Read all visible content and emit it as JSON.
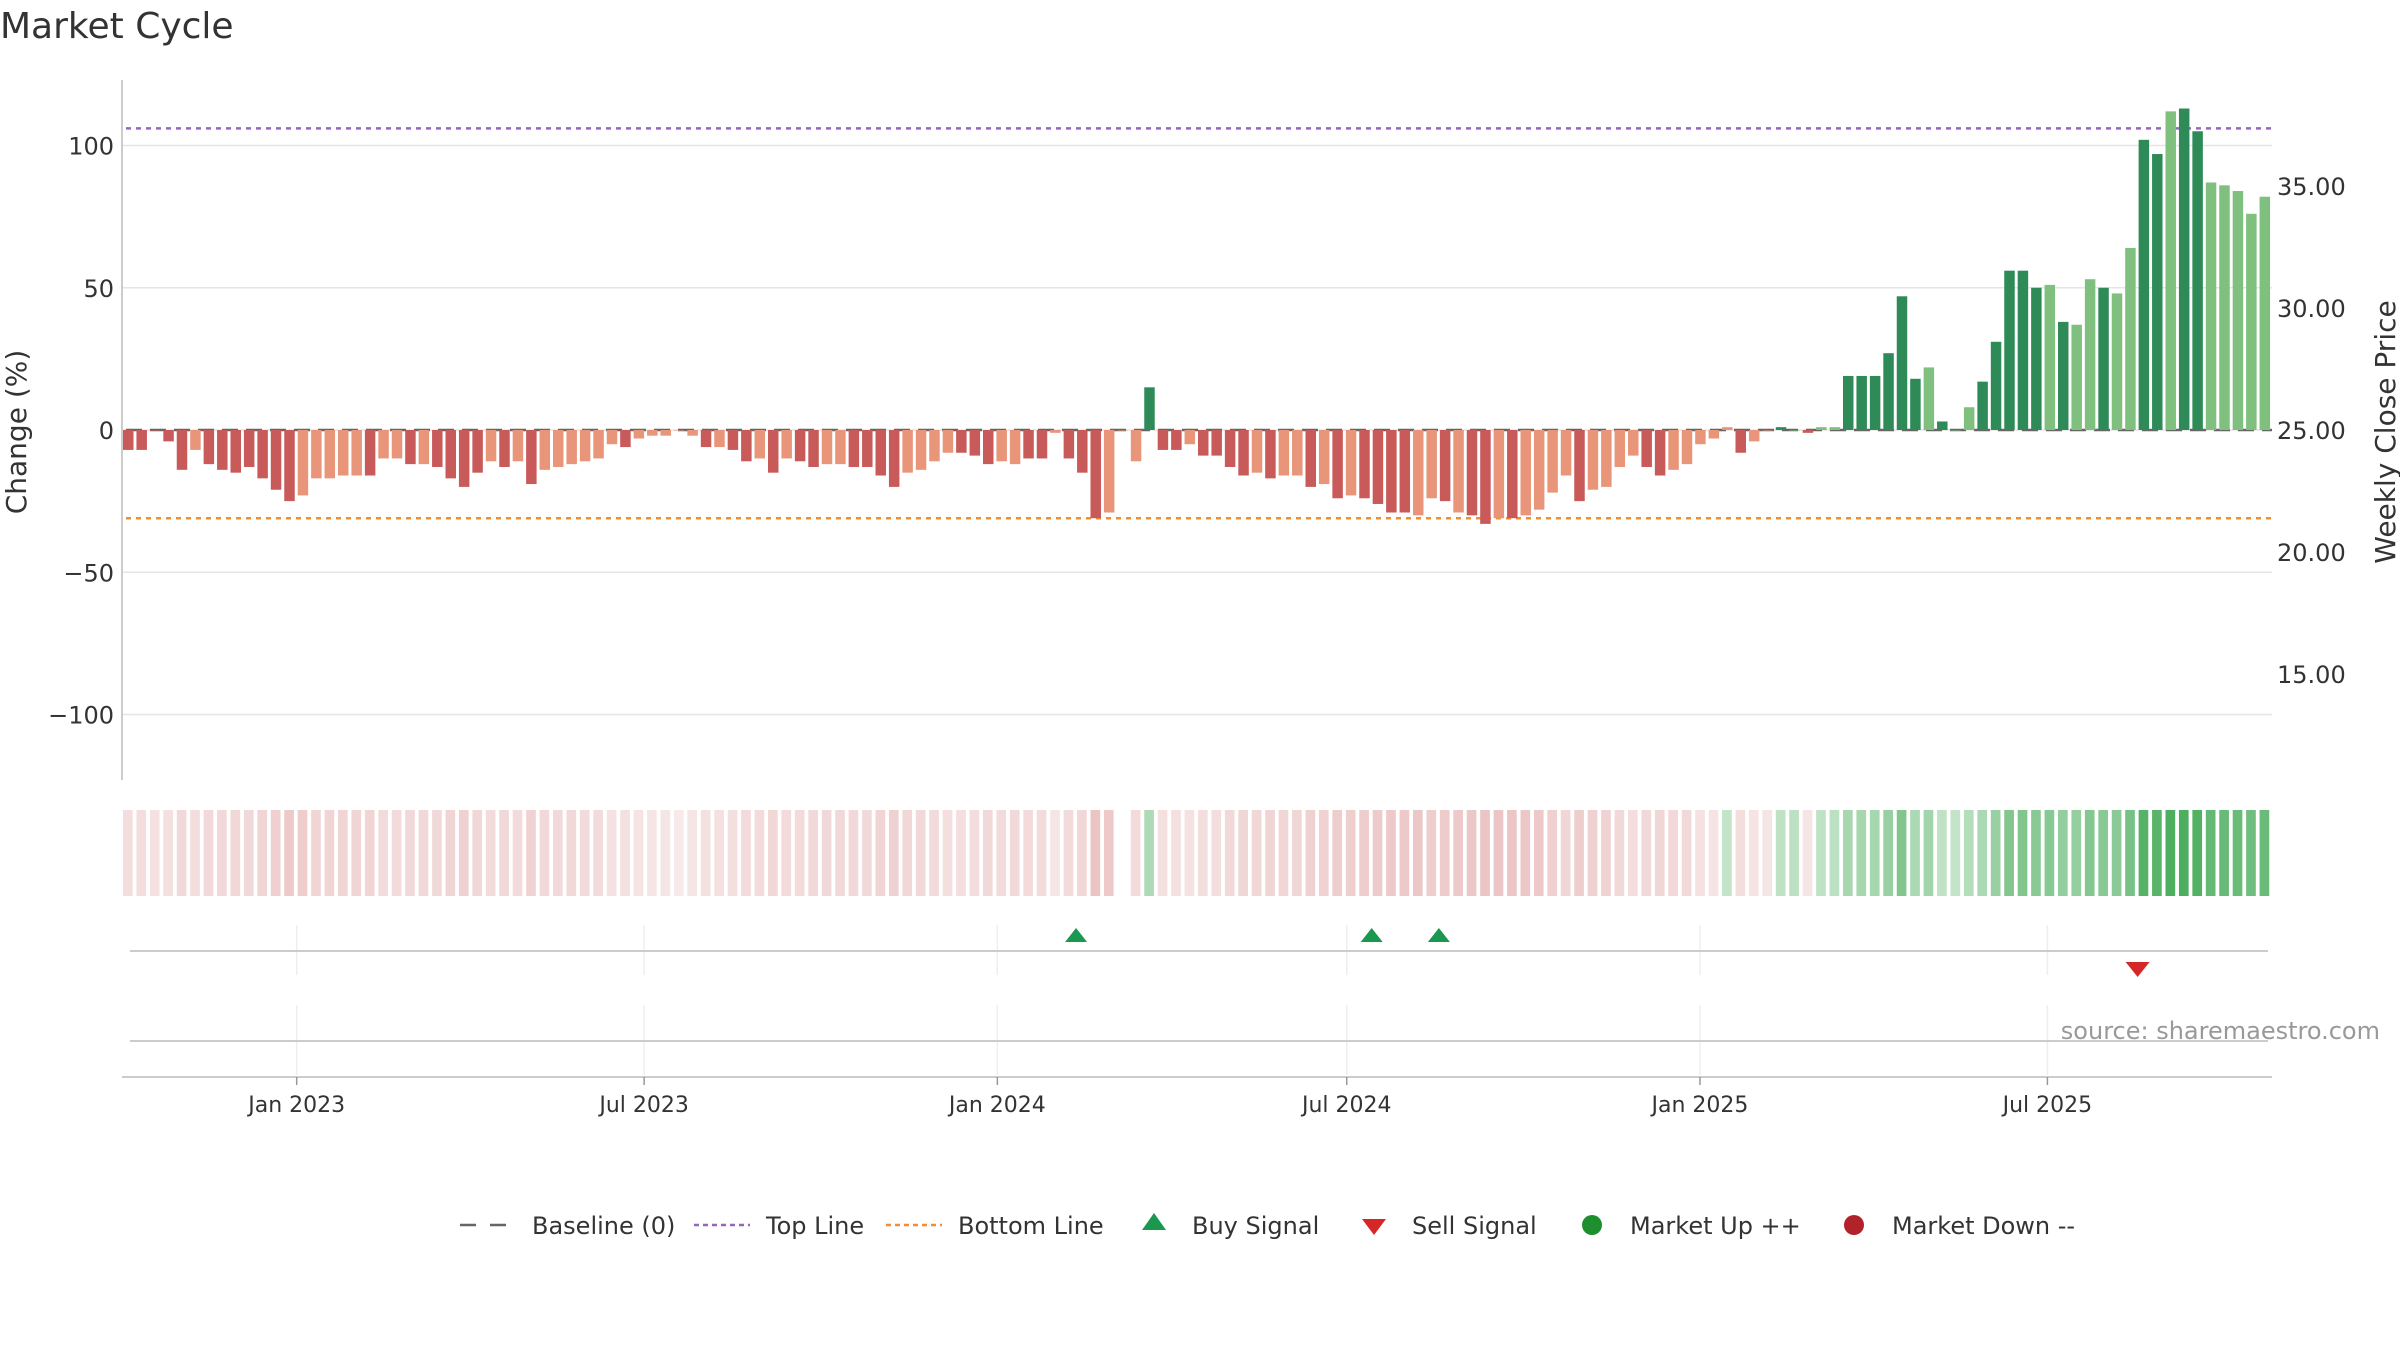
{
  "chart_data": {
    "type": "bar",
    "title": "Market Cycle",
    "ylabel": "Change (%)",
    "y2label": "Weekly Close Price",
    "ylim": [
      -123,
      123
    ],
    "y_ticks": [
      100,
      50,
      0,
      -50,
      -100
    ],
    "y_tick_labels": [
      "100",
      "50",
      "0",
      "−50",
      "−100"
    ],
    "y2_ticks": [
      35,
      30,
      25,
      20,
      15
    ],
    "y2_tick_labels": [
      "35.00",
      "30.00",
      "25.00",
      "20.00",
      "15.00"
    ],
    "top_line": 106,
    "bottom_line": -31,
    "x_range": [
      "2022-10-02",
      "2025-10-26"
    ],
    "date_ticks": [
      "2023-01-01",
      "2023-07-01",
      "2024-01-01",
      "2024-07-01",
      "2025-01-01",
      "2025-07-01"
    ],
    "date_tick_labels": [
      "Jan 2023",
      "Jul 2023",
      "Jan 2024",
      "Jul 2024",
      "Jan 2025",
      "Jul 2025"
    ],
    "start_date": "2022-10-02",
    "week_days": 7,
    "values": [
      -7,
      -7,
      0,
      -4,
      -14,
      -7,
      -12,
      -14,
      -15,
      -13,
      -17,
      -21,
      -25,
      -23,
      -17,
      -17,
      -16,
      -16,
      -16,
      -10,
      -10,
      -12,
      -12,
      -13,
      -17,
      -20,
      -15,
      -11,
      -13,
      -11,
      -19,
      -14,
      -13,
      -12,
      -11,
      -10,
      -5,
      -6,
      -3,
      -2,
      -2,
      0,
      -2,
      -6,
      -6,
      -7,
      -11,
      -10,
      -15,
      -10,
      -11,
      -13,
      -12,
      -12,
      -13,
      -13,
      -16,
      -20,
      -15,
      -14,
      -11,
      -8,
      -8,
      -9,
      -12,
      -11,
      -12,
      -10,
      -10,
      -1,
      -10,
      -15,
      -31,
      -29,
      0,
      -11,
      15,
      -7,
      -7,
      -5,
      -9,
      -9,
      -13,
      -16,
      -15,
      -17,
      -16,
      -16,
      -20,
      -19,
      -24,
      -23,
      -24,
      -26,
      -29,
      -29,
      -30,
      -24,
      -25,
      -29,
      -30,
      -33,
      -31,
      -31,
      -30,
      -28,
      -22,
      -16,
      -25,
      -21,
      -20,
      -13,
      -9,
      -13,
      -16,
      -14,
      -12,
      -5,
      -3,
      1,
      -8,
      -4,
      0,
      1,
      0,
      -1,
      1,
      1,
      19,
      19,
      19,
      27,
      47,
      18,
      22,
      3,
      0,
      8,
      17,
      31,
      56,
      56,
      50,
      51,
      38,
      37,
      53,
      50,
      48,
      64,
      102,
      97,
      112,
      113,
      105,
      87,
      86,
      84,
      76,
      82
    ],
    "bar_colors": [
      "r",
      "r",
      "r",
      "r",
      "r",
      "o",
      "r",
      "r",
      "r",
      "r",
      "r",
      "r",
      "r",
      "o",
      "o",
      "o",
      "o",
      "o",
      "r",
      "o",
      "o",
      "r",
      "o",
      "r",
      "r",
      "r",
      "r",
      "o",
      "r",
      "o",
      "r",
      "o",
      "o",
      "o",
      "o",
      "o",
      "o",
      "r",
      "o",
      "o",
      "o",
      "o",
      "o",
      "r",
      "o",
      "r",
      "r",
      "o",
      "r",
      "o",
      "r",
      "r",
      "o",
      "o",
      "r",
      "r",
      "r",
      "r",
      "o",
      "o",
      "o",
      "o",
      "r",
      "r",
      "r",
      "o",
      "o",
      "r",
      "r",
      "o",
      "r",
      "r",
      "r",
      "o",
      "o",
      "o",
      "g",
      "r",
      "r",
      "o",
      "r",
      "r",
      "r",
      "r",
      "o",
      "r",
      "o",
      "o",
      "r",
      "o",
      "r",
      "o",
      "r",
      "r",
      "r",
      "r",
      "o",
      "o",
      "r",
      "o",
      "r",
      "r",
      "o",
      "r",
      "o",
      "o",
      "o",
      "o",
      "r",
      "o",
      "o",
      "o",
      "o",
      "r",
      "r",
      "o",
      "o",
      "o",
      "o",
      "o",
      "r",
      "o",
      "o",
      "g",
      "lg",
      "r",
      "lg",
      "lg",
      "g",
      "g",
      "g",
      "g",
      "g",
      "g",
      "lg",
      "g",
      "lg",
      "lg",
      "g",
      "g",
      "g",
      "g",
      "g",
      "lg",
      "g",
      "lg",
      "lg",
      "g",
      "lg",
      "lg",
      "g",
      "g",
      "lg",
      "g",
      "g",
      "lg",
      "lg",
      "lg",
      "lg",
      "lg",
      "g"
    ],
    "heat_intensity": [
      0.25,
      0.25,
      0.2,
      0.22,
      0.3,
      0.25,
      0.3,
      0.32,
      0.33,
      0.3,
      0.35,
      0.42,
      0.5,
      0.45,
      0.35,
      0.35,
      0.35,
      0.35,
      0.35,
      0.27,
      0.27,
      0.3,
      0.3,
      0.3,
      0.35,
      0.4,
      0.33,
      0.28,
      0.3,
      0.28,
      0.38,
      0.32,
      0.3,
      0.3,
      0.28,
      0.27,
      0.2,
      0.22,
      0.18,
      0.15,
      0.15,
      0.1,
      0.15,
      0.22,
      0.22,
      0.23,
      0.28,
      0.27,
      0.33,
      0.27,
      0.28,
      0.3,
      0.3,
      0.3,
      0.3,
      0.3,
      0.35,
      0.4,
      0.33,
      0.32,
      0.28,
      0.24,
      0.24,
      0.25,
      0.3,
      0.28,
      0.3,
      0.27,
      0.27,
      0.15,
      0.27,
      0.33,
      0.55,
      0.5,
      0.0,
      0.28,
      0.3,
      0.22,
      0.22,
      0.2,
      0.25,
      0.25,
      0.3,
      0.34,
      0.33,
      0.35,
      0.34,
      0.34,
      0.4,
      0.38,
      0.45,
      0.43,
      0.45,
      0.47,
      0.5,
      0.5,
      0.52,
      0.45,
      0.46,
      0.5,
      0.52,
      0.55,
      0.53,
      0.53,
      0.52,
      0.5,
      0.42,
      0.34,
      0.45,
      0.4,
      0.38,
      0.3,
      0.25,
      0.3,
      0.34,
      0.32,
      0.3,
      0.2,
      0.17,
      0.15,
      0.25,
      0.18,
      0.15,
      0.18,
      0.2,
      0.15,
      0.18,
      0.2,
      0.35,
      0.35,
      0.35,
      0.45,
      0.6,
      0.32,
      0.38,
      0.18,
      0.15,
      0.25,
      0.32,
      0.45,
      0.6,
      0.6,
      0.55,
      0.56,
      0.48,
      0.47,
      0.58,
      0.55,
      0.53,
      0.68,
      0.9,
      0.88,
      0.95,
      0.96,
      0.92,
      0.8,
      0.78,
      0.77,
      0.72,
      0.76
    ],
    "heat_gap_index": 74,
    "buy_signals": [
      "2024-02-11",
      "2024-07-14",
      "2024-08-18"
    ],
    "sell_signals": [
      "2025-08-17"
    ],
    "legend": [
      {
        "label": "Baseline (0)",
        "symbol": "dashed",
        "color": "#666666"
      },
      {
        "label": "Top Line",
        "symbol": "dotted",
        "color": "#9467bd"
      },
      {
        "label": "Bottom Line",
        "symbol": "dotted",
        "color": "#f28e2b"
      },
      {
        "label": "Buy Signal",
        "symbol": "triangle-up",
        "color": "#1a9850"
      },
      {
        "label": "Sell Signal",
        "symbol": "triangle-down",
        "color": "#d62728"
      },
      {
        "label": "Market Up ++",
        "symbol": "circle",
        "color": "#1e8f2e"
      },
      {
        "label": "Market Down --",
        "symbol": "circle",
        "color": "#b2222b"
      }
    ],
    "source": "source: sharemaestro.com",
    "grid": true,
    "legend_position": "bottom-center"
  },
  "colors": {
    "red": "#c85a5a",
    "orange": "#e8957a",
    "green": "#2e8b57",
    "light_green": "#7fc07f",
    "top_line": "#9467bd",
    "bottom_line": "#f28e2b",
    "buy": "#1a9850",
    "sell": "#d62728",
    "grid": "#e5e5e5"
  }
}
